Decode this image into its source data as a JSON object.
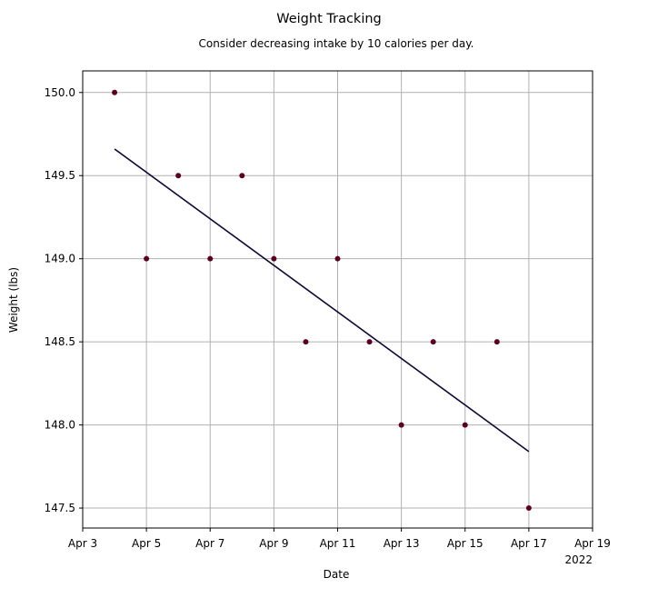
{
  "chart_data": {
    "type": "scatter",
    "title": "Weight Tracking",
    "subtitle": "Consider decreasing intake by 10 calories per day.",
    "xlabel": "Date",
    "ylabel": "Weight (lbs)",
    "xlim": [
      "2022-04-03",
      "2022-04-19"
    ],
    "ylim": [
      147.38,
      150.13
    ],
    "x_ticks": [
      {
        "date": "2022-04-03",
        "label": "Apr 3"
      },
      {
        "date": "2022-04-05",
        "label": "Apr 5"
      },
      {
        "date": "2022-04-07",
        "label": "Apr 7"
      },
      {
        "date": "2022-04-09",
        "label": "Apr 9"
      },
      {
        "date": "2022-04-11",
        "label": "Apr 11"
      },
      {
        "date": "2022-04-13",
        "label": "Apr 13"
      },
      {
        "date": "2022-04-15",
        "label": "Apr 15"
      },
      {
        "date": "2022-04-17",
        "label": "Apr 17"
      },
      {
        "date": "2022-04-19",
        "label": "Apr 19"
      }
    ],
    "x_offset_label": "2022",
    "y_ticks": [
      {
        "value": 147.5,
        "label": "147.5"
      },
      {
        "value": 148.0,
        "label": "148.0"
      },
      {
        "value": 148.5,
        "label": "148.5"
      },
      {
        "value": 149.0,
        "label": "149.0"
      },
      {
        "value": 149.5,
        "label": "149.5"
      },
      {
        "value": 150.0,
        "label": "150.0"
      }
    ],
    "grid": true,
    "series": [
      {
        "kind": "points",
        "color": "#5c0020",
        "x": [
          "2022-04-04",
          "2022-04-05",
          "2022-04-06",
          "2022-04-07",
          "2022-04-08",
          "2022-04-09",
          "2022-04-10",
          "2022-04-11",
          "2022-04-12",
          "2022-04-13",
          "2022-04-14",
          "2022-04-15",
          "2022-04-16",
          "2022-04-17"
        ],
        "y": [
          150.0,
          149.0,
          149.5,
          149.0,
          149.5,
          149.0,
          148.5,
          149.0,
          148.5,
          148.0,
          148.5,
          148.0,
          148.5,
          147.5
        ]
      },
      {
        "kind": "trend-line",
        "color": "#0d0a36",
        "x": [
          "2022-04-04",
          "2022-04-17"
        ],
        "y": [
          149.66,
          147.84
        ]
      }
    ]
  }
}
